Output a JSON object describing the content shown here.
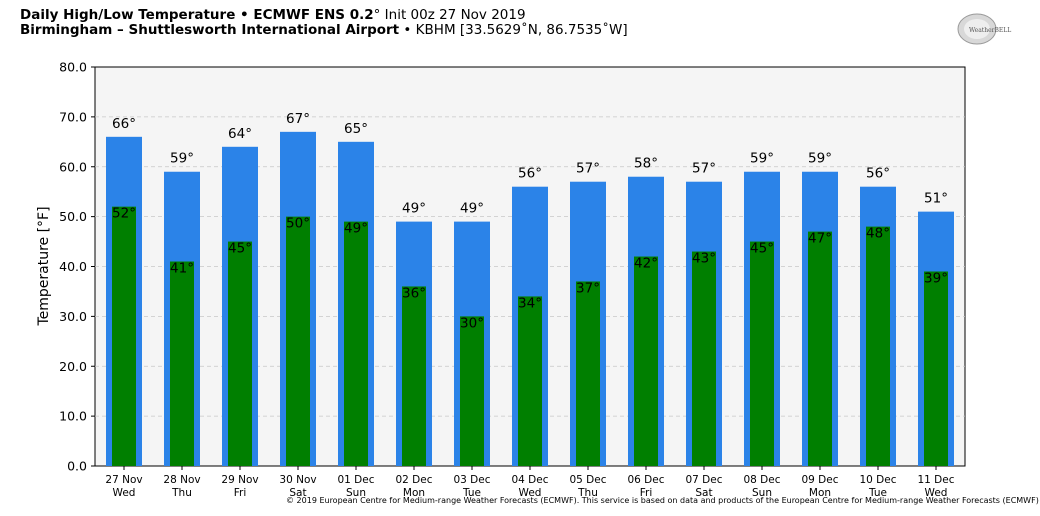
{
  "header": {
    "line1_bold": "Daily High/Low Temperature • ECMWF ENS 0.2",
    "line1_degree": "°",
    "line1_rest": " Init 00z 27 Nov 2019",
    "line2_bold": "Birmingham – Shuttlesworth International Airport",
    "line2_rest": " • KBHM [33.5629˚N, 86.7535˚W]"
  },
  "logo": {
    "text": "WeatherBELL"
  },
  "copyright": "© 2019 European Centre for Medium-range Weather Forecasts (ECMWF). This service is based on data and products of the European Centre for Medium-range Weather Forecasts (ECMWF)",
  "chart_data": {
    "type": "bar",
    "title": "Daily High/Low Temperature • ECMWF ENS 0.2˚ Init 00z 27 Nov 2019",
    "ylabel": "Temperature [°F]",
    "xlabel": "",
    "ylim": [
      0,
      80
    ],
    "yticks": [
      "0.0",
      "10.0",
      "20.0",
      "30.0",
      "40.0",
      "50.0",
      "60.0",
      "70.0",
      "80.0"
    ],
    "grid": true,
    "categories": [
      [
        "27 Nov",
        "Wed"
      ],
      [
        "28 Nov",
        "Thu"
      ],
      [
        "29 Nov",
        "Fri"
      ],
      [
        "30 Nov",
        "Sat"
      ],
      [
        "01 Dec",
        "Sun"
      ],
      [
        "02 Dec",
        "Mon"
      ],
      [
        "03 Dec",
        "Tue"
      ],
      [
        "04 Dec",
        "Wed"
      ],
      [
        "05 Dec",
        "Thu"
      ],
      [
        "06 Dec",
        "Fri"
      ],
      [
        "07 Dec",
        "Sat"
      ],
      [
        "08 Dec",
        "Sun"
      ],
      [
        "09 Dec",
        "Mon"
      ],
      [
        "10 Dec",
        "Tue"
      ],
      [
        "11 Dec",
        "Wed"
      ]
    ],
    "series": [
      {
        "color": "#2b83e8",
        "values": [
          66,
          59,
          64,
          67,
          65,
          49,
          49,
          56,
          57,
          58,
          57,
          59,
          59,
          56,
          51
        ]
      },
      {
        "color": "#007f00",
        "values": [
          52,
          41,
          45,
          50,
          49,
          36,
          30,
          34,
          37,
          42,
          43,
          45,
          47,
          48,
          39
        ]
      }
    ],
    "value_suffix": "°",
    "plot_background": "#f5f5f5"
  }
}
